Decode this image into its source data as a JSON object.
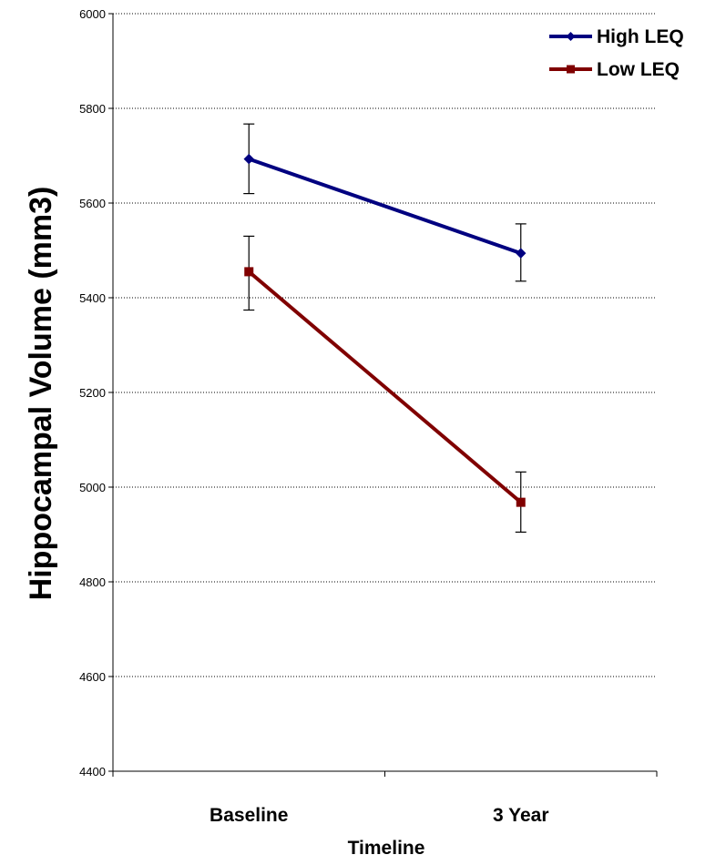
{
  "chart_data": {
    "type": "line",
    "title": "",
    "xlabel": "Timeline",
    "ylabel": "Hippocampal Volume (mm3)",
    "categories": [
      "Baseline",
      "3 Year"
    ],
    "ylim": [
      4400,
      6000
    ],
    "yticks": [
      4400,
      4600,
      4800,
      5000,
      5200,
      5400,
      5600,
      5800,
      6000
    ],
    "grid": "horizontal dotted",
    "legend_position": "top-right",
    "series": [
      {
        "name": "High LEQ",
        "color": "#000080",
        "marker": "diamond",
        "values": [
          5693,
          5494
        ],
        "error_low": [
          5620,
          5435
        ],
        "error_high": [
          5767,
          5556
        ]
      },
      {
        "name": "Low LEQ",
        "color": "#800000",
        "marker": "square",
        "values": [
          5455,
          4968
        ],
        "error_low": [
          5374,
          4905
        ],
        "error_high": [
          5530,
          5032
        ]
      }
    ]
  }
}
